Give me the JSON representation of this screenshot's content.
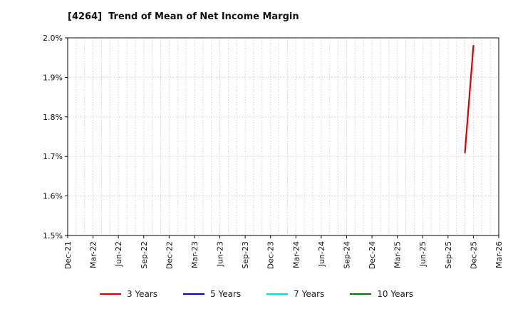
{
  "chart_data": {
    "type": "line",
    "title": "[4264]  Trend of Mean of Net Income Margin",
    "xlabel": "",
    "ylabel": "",
    "ylim": [
      1.5,
      2.0
    ],
    "y_tick_labels": [
      "1.5%",
      "1.6%",
      "1.7%",
      "1.8%",
      "1.9%",
      "2.0%"
    ],
    "x_tick_labels": [
      "Dec-21",
      "Mar-22",
      "Jun-22",
      "Sep-22",
      "Dec-22",
      "Mar-23",
      "Jun-23",
      "Sep-23",
      "Dec-23",
      "Mar-24",
      "Jun-24",
      "Sep-24",
      "Dec-24",
      "Mar-25",
      "Jun-25",
      "Sep-25",
      "Dec-25",
      "Mar-26"
    ],
    "x_months_total": 51,
    "x_tick_interval_months": 3,
    "grid": "dotted",
    "legend_position": "bottom",
    "series": [
      {
        "name": "3 Years",
        "color": "#dd0000",
        "points": [
          {
            "month_index": 47,
            "value": 1.71
          },
          {
            "month_index": 48,
            "value": 1.98
          }
        ]
      },
      {
        "name": "5 Years",
        "color": "#0000cc",
        "points": []
      },
      {
        "name": "7 Years",
        "color": "#00dde6",
        "points": []
      },
      {
        "name": "10 Years",
        "color": "#007700",
        "points": []
      }
    ]
  }
}
